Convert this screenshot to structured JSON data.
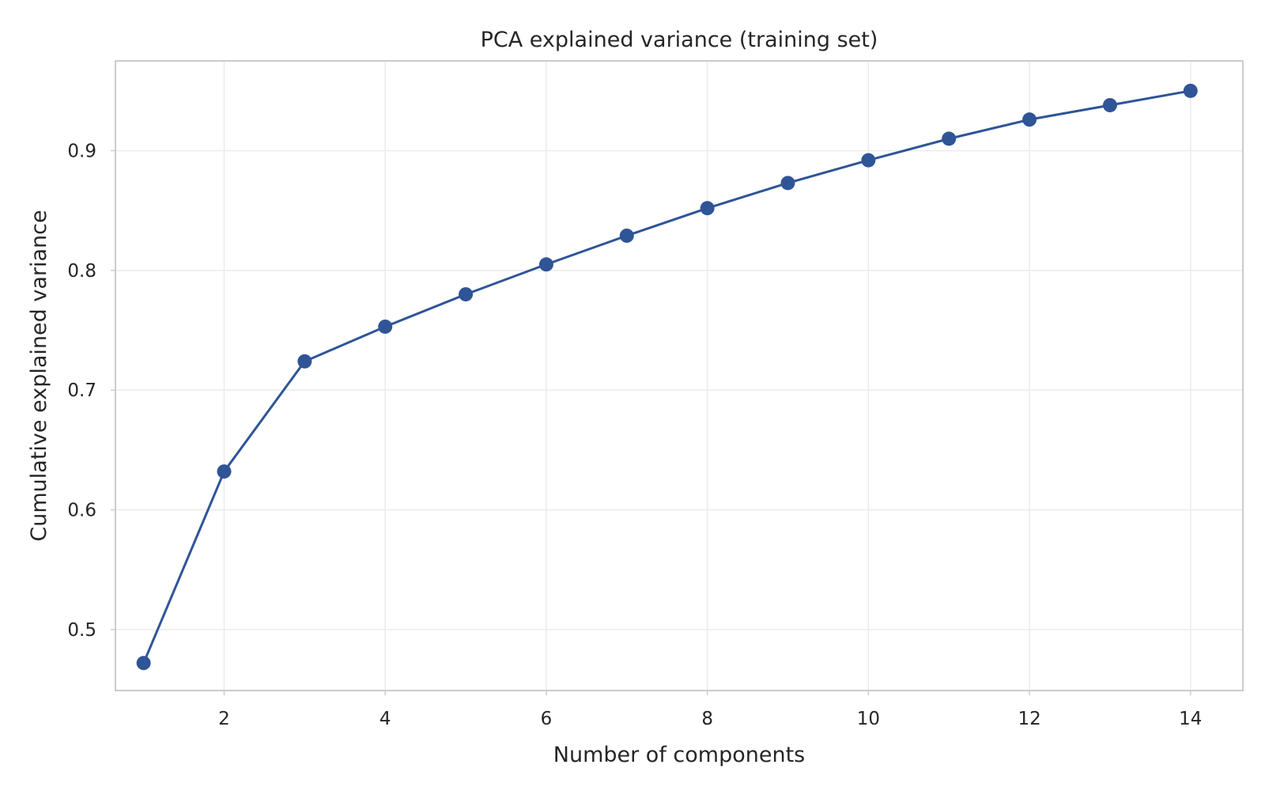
{
  "chart_data": {
    "type": "line",
    "title": "PCA explained variance (training set)",
    "xlabel": "Number of components",
    "ylabel": "Cumulative explained variance",
    "x": [
      1,
      2,
      3,
      4,
      5,
      6,
      7,
      8,
      9,
      10,
      11,
      12,
      13,
      14
    ],
    "series": [
      {
        "values": [
          0.472,
          0.632,
          0.724,
          0.753,
          0.78,
          0.805,
          0.829,
          0.852,
          0.873,
          0.892,
          0.91,
          0.926,
          0.938,
          0.95
        ],
        "color": "#2f5597",
        "marker": "circle"
      }
    ],
    "xlim": [
      0.65,
      14.65
    ],
    "ylim": [
      0.449,
      0.975
    ],
    "xticks": [
      2,
      4,
      6,
      8,
      10,
      12,
      14
    ],
    "yticks": [
      0.5,
      0.6,
      0.7,
      0.8,
      0.9
    ],
    "xtick_labels": [
      "2",
      "4",
      "6",
      "8",
      "10",
      "12",
      "14"
    ],
    "ytick_labels": [
      "0.5",
      "0.6",
      "0.7",
      "0.8",
      "0.9"
    ],
    "grid": true,
    "legend": false
  }
}
